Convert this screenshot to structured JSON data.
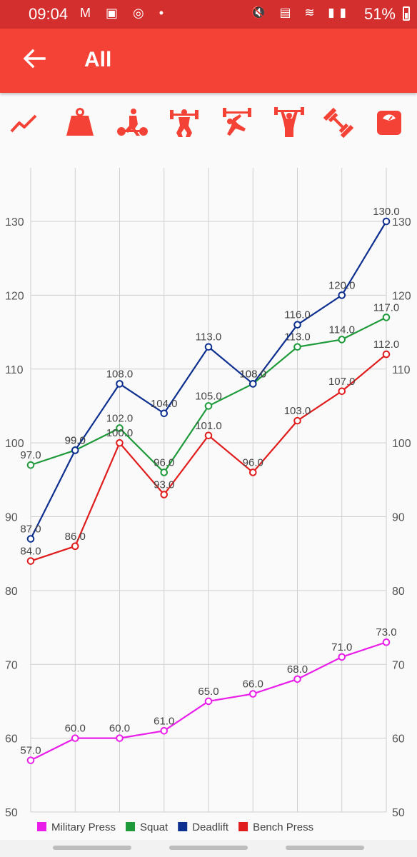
{
  "status_bar": {
    "time": "09:04",
    "left_icons": "M ▣ ◎ •",
    "right_icons": "🔇 ▤ ≋ ▮▮",
    "battery": "51%"
  },
  "app_bar": {
    "title": "All",
    "back_icon": "arrow-back-icon"
  },
  "toolbar": {
    "accent": "#f44336",
    "icons": [
      "trend-line-icon",
      "weight-icon",
      "deadlift-icon",
      "squat-icon",
      "bench-press-icon",
      "military-press-icon",
      "dumbbell-icon",
      "scale-icon"
    ]
  },
  "chart_data": {
    "type": "line",
    "x": [
      1,
      2,
      3,
      4,
      5,
      6,
      7,
      8,
      9
    ],
    "ylim": [
      50,
      135
    ],
    "yticks": [
      50,
      60,
      70,
      80,
      90,
      100,
      110,
      120,
      130
    ],
    "grid": true,
    "legend_position": "bottom-left",
    "series": [
      {
        "name": "Military Press",
        "color": "#e91ee9",
        "values": [
          57,
          60,
          60,
          61,
          65,
          66,
          68,
          71,
          73
        ]
      },
      {
        "name": "Squat",
        "color": "#1e9a3a",
        "values": [
          97,
          99,
          102,
          96,
          105,
          108,
          113,
          114,
          117
        ]
      },
      {
        "name": "Deadlift",
        "color": "#0d2f8f",
        "values": [
          87,
          99,
          108,
          104,
          113,
          108,
          116,
          120,
          130
        ]
      },
      {
        "name": "Bench Press",
        "color": "#e01c1c",
        "values": [
          84,
          86,
          100,
          93,
          101,
          96,
          103,
          107,
          112
        ]
      }
    ]
  }
}
